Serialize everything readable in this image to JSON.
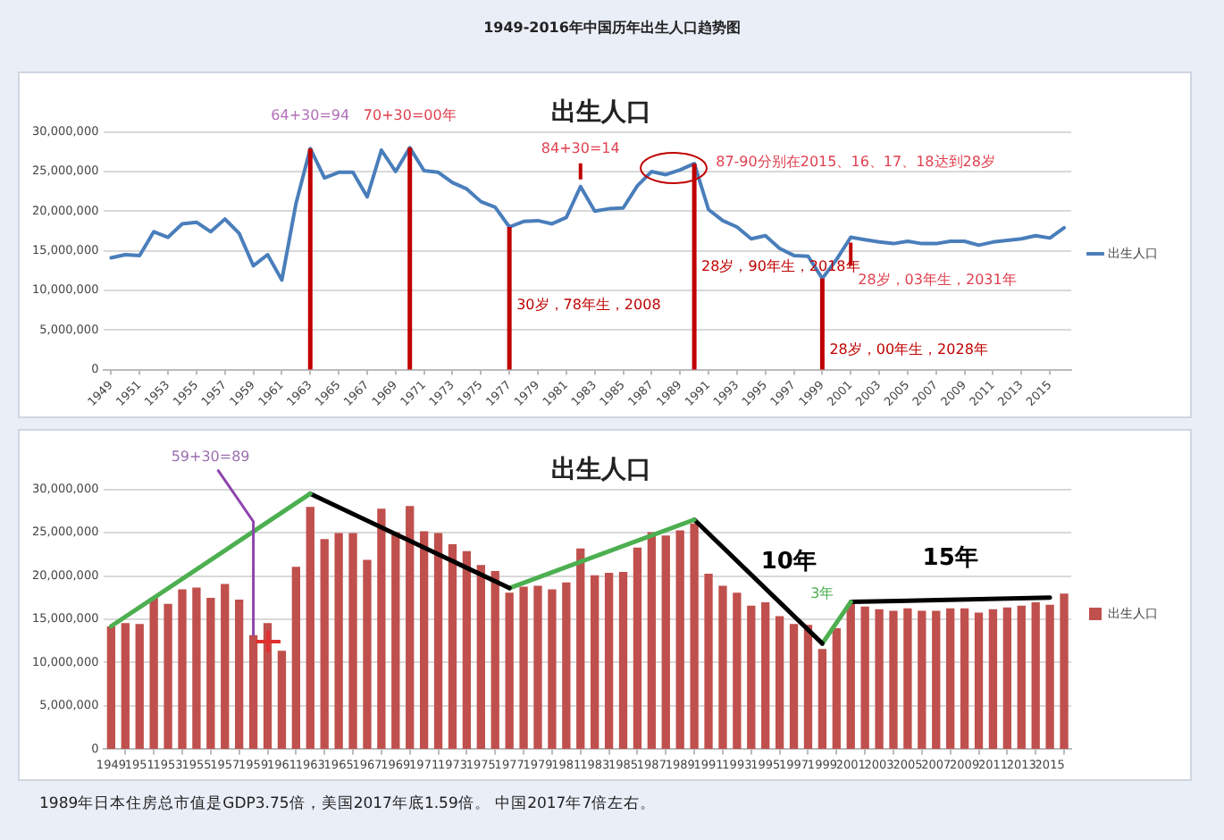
{
  "chart_data": [
    {
      "type": "line",
      "title": "出生人口",
      "x": [
        1949,
        1950,
        1951,
        1952,
        1953,
        1954,
        1955,
        1956,
        1957,
        1958,
        1959,
        1960,
        1961,
        1962,
        1963,
        1964,
        1965,
        1966,
        1967,
        1968,
        1969,
        1970,
        1971,
        1972,
        1973,
        1974,
        1975,
        1976,
        1977,
        1978,
        1979,
        1980,
        1981,
        1982,
        1983,
        1984,
        1985,
        1986,
        1987,
        1988,
        1989,
        1990,
        1991,
        1992,
        1993,
        1994,
        1995,
        1996,
        1997,
        1998,
        1999,
        2000,
        2001,
        2002,
        2003,
        2004,
        2005,
        2006,
        2007,
        2008,
        2009,
        2010,
        2011,
        2012,
        2013,
        2014,
        2015,
        2016
      ],
      "series": [
        {
          "name": "出生人口",
          "color": "#4a7ebb",
          "values": [
            14100000,
            14500000,
            14400000,
            17400000,
            16700000,
            18400000,
            18600000,
            17400000,
            19000000,
            17200000,
            13100000,
            14500000,
            11300000,
            21000000,
            27900000,
            24200000,
            24900000,
            24900000,
            21800000,
            27700000,
            25000000,
            28000000,
            25100000,
            24900000,
            23600000,
            22800000,
            21200000,
            20500000,
            18000000,
            18700000,
            18800000,
            18400000,
            19200000,
            23100000,
            20000000,
            20300000,
            20400000,
            23200000,
            25000000,
            24600000,
            25200000,
            26000000,
            20200000,
            18800000,
            18000000,
            16500000,
            16900000,
            15300000,
            14400000,
            14300000,
            11500000,
            13900000,
            16700000,
            16400000,
            16100000,
            15900000,
            16200000,
            15900000,
            15900000,
            16200000,
            16200000,
            15700000,
            16100000,
            16300000,
            16500000,
            16900000,
            16600000,
            17900000
          ]
        }
      ],
      "xlim": [
        1948.5,
        2016.5
      ],
      "xticks": [
        1949,
        1951,
        1953,
        1955,
        1957,
        1959,
        1961,
        1963,
        1965,
        1967,
        1969,
        1971,
        1973,
        1975,
        1977,
        1979,
        1981,
        1983,
        1985,
        1987,
        1989,
        1991,
        1993,
        1995,
        1997,
        1999,
        2001,
        2003,
        2005,
        2007,
        2009,
        2011,
        2013,
        2015
      ],
      "ylim": [
        0,
        30000000
      ],
      "yticks": [
        0,
        {
          "value": 5000000,
          "label": "5,000,000"
        },
        {
          "value": 10000000,
          "label": "10,000,000"
        },
        {
          "value": 15000000,
          "label": "15,000,000"
        },
        {
          "value": 20000000,
          "label": "20,000,000"
        },
        {
          "value": 25000000,
          "label": "25,000,000"
        },
        {
          "value": 30000000,
          "label": "30,000,000"
        }
      ],
      "grid": "y",
      "legend": "right",
      "ref_lines": [
        {
          "axis": "x",
          "value": 1963,
          "color": "#c00000"
        },
        {
          "axis": "x",
          "value": 1970,
          "color": "#c00000"
        },
        {
          "axis": "x",
          "value": 1977,
          "label": "30岁，78年生，2008",
          "color": "#c00000"
        },
        {
          "axis": "x",
          "value": 1990,
          "label": "28岁，90年生，2018年",
          "color": "#c00000"
        },
        {
          "axis": "x",
          "value": 1999,
          "label": "28岁，00年生，2028年",
          "color": "#c00000"
        }
      ],
      "annotations": [
        "1949-2016年中国历年出生人口趋势图",
        {
          "text": "64+30=94",
          "x": 1963,
          "y": 27900000
        },
        {
          "text": "70+30=00年",
          "x": 1970,
          "y": 28000000
        },
        {
          "text": "84+30=14",
          "x": 1982,
          "y": 23100000
        },
        {
          "text": "87-90分别在2015、16、17、18达到28岁",
          "x": 1988.5,
          "y": 25500000
        },
        {
          "text": "28岁，03年生，2031年",
          "x": 2001,
          "y": 16700000
        }
      ]
    },
    {
      "type": "bar",
      "title": "出生人口",
      "x": [
        1949,
        1950,
        1951,
        1952,
        1953,
        1954,
        1955,
        1956,
        1957,
        1958,
        1959,
        1960,
        1961,
        1962,
        1963,
        1964,
        1965,
        1966,
        1967,
        1968,
        1969,
        1970,
        1971,
        1972,
        1973,
        1974,
        1975,
        1976,
        1977,
        1978,
        1979,
        1980,
        1981,
        1982,
        1983,
        1984,
        1985,
        1986,
        1987,
        1988,
        1989,
        1990,
        1991,
        1992,
        1993,
        1994,
        1995,
        1996,
        1997,
        1998,
        1999,
        2000,
        2001,
        2002,
        2003,
        2004,
        2005,
        2006,
        2007,
        2008,
        2009,
        2010,
        2011,
        2012,
        2013,
        2014,
        2015,
        2016
      ],
      "series": [
        {
          "name": "出生人口",
          "color": "#c0504d",
          "values": [
            14100000,
            14500000,
            14400000,
            17400000,
            16700000,
            18400000,
            18600000,
            17400000,
            19000000,
            17200000,
            13100000,
            14500000,
            11300000,
            21000000,
            27900000,
            24200000,
            24900000,
            24900000,
            21800000,
            27700000,
            25000000,
            28000000,
            25100000,
            24900000,
            23600000,
            22800000,
            21200000,
            20500000,
            18000000,
            18700000,
            18800000,
            18400000,
            19200000,
            23100000,
            20000000,
            20300000,
            20400000,
            23200000,
            25000000,
            24600000,
            25200000,
            26000000,
            20200000,
            18800000,
            18000000,
            16500000,
            16900000,
            15300000,
            14400000,
            14300000,
            11500000,
            13900000,
            16700000,
            16400000,
            16100000,
            15900000,
            16200000,
            15900000,
            15900000,
            16200000,
            16200000,
            15700000,
            16100000,
            16300000,
            16500000,
            16900000,
            16600000,
            17900000
          ]
        },
        {
          "type": "line",
          "color": "#4caf50",
          "x": [
            1949,
            1963
          ],
          "values": [
            14200000,
            29500000
          ]
        },
        {
          "type": "line",
          "color": "#000000",
          "x": [
            1963,
            1977
          ],
          "values": [
            29500000,
            18600000
          ]
        },
        {
          "type": "line",
          "color": "#4caf50",
          "x": [
            1977,
            1990
          ],
          "values": [
            18600000,
            26500000
          ]
        },
        {
          "type": "line",
          "color": "#000000",
          "x": [
            1990,
            1999
          ],
          "values": [
            26500000,
            12200000
          ]
        },
        {
          "type": "line",
          "color": "#4caf50",
          "x": [
            1999,
            2001
          ],
          "values": [
            12200000,
            17000000
          ]
        },
        {
          "type": "line",
          "color": "#000000",
          "x": [
            2001,
            2015
          ],
          "values": [
            17000000,
            17500000
          ]
        }
      ],
      "xlim": [
        1948.5,
        2016.5
      ],
      "xticks": [
        1949,
        1951,
        1953,
        1955,
        1957,
        1959,
        1961,
        1963,
        1965,
        1967,
        1969,
        1971,
        1973,
        1975,
        1977,
        1979,
        1981,
        1983,
        1985,
        1987,
        1989,
        1991,
        1993,
        1995,
        1997,
        1999,
        2001,
        2003,
        2005,
        2007,
        2009,
        2011,
        2013,
        2015
      ],
      "ylim": [
        0,
        30000000
      ],
      "yticks": [
        0,
        {
          "value": 5000000,
          "label": "5,000,000"
        },
        {
          "value": 10000000,
          "label": "10,000,000"
        },
        {
          "value": 15000000,
          "label": "15,000,000"
        },
        {
          "value": 20000000,
          "label": "20,000,000"
        },
        {
          "value": 25000000,
          "label": "25,000,000"
        },
        {
          "value": 30000000,
          "label": "30,000,000"
        }
      ],
      "grid": "y",
      "legend": "right",
      "annotations": [
        {
          "text": "59+30=89",
          "x": 1959,
          "y": 13100000
        },
        "10年",
        "3年",
        "15年",
        "1989年日本住房总市值是GDP3.75倍，美国2017年底1.59倍。 中国2017年7倍左右。"
      ]
    }
  ]
}
